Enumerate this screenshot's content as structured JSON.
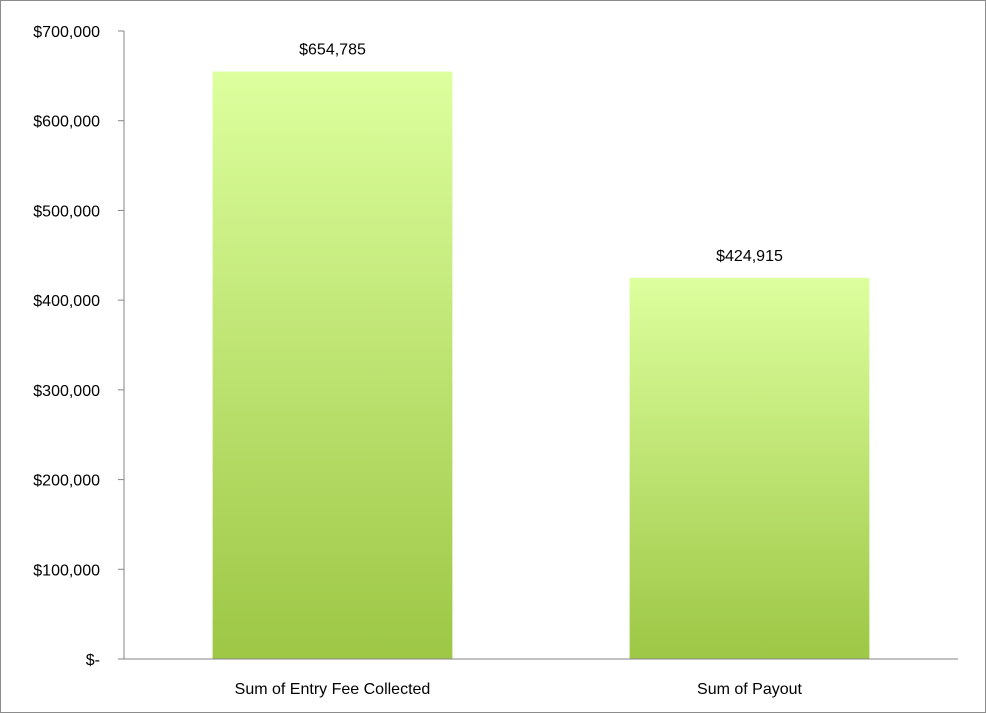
{
  "chart_data": {
    "type": "bar",
    "categories": [
      "Sum of Entry Fee Collected",
      "Sum of Payout"
    ],
    "values": [
      654785,
      424915
    ],
    "data_labels": [
      "$654,785",
      "$424,915"
    ],
    "title": "",
    "xlabel": "",
    "ylabel": "",
    "ylim": [
      0,
      700000
    ],
    "yticks": [
      {
        "value": 0,
        "label": "$-"
      },
      {
        "value": 100000,
        "label": "$100,000"
      },
      {
        "value": 200000,
        "label": "$200,000"
      },
      {
        "value": 300000,
        "label": "$300,000"
      },
      {
        "value": 400000,
        "label": "$400,000"
      },
      {
        "value": 500000,
        "label": "$500,000"
      },
      {
        "value": 600000,
        "label": "$600,000"
      },
      {
        "value": 700000,
        "label": "$700,000"
      }
    ],
    "grid": false,
    "legend": "none",
    "colors": {
      "bar_top": "#ddff9e",
      "bar_bottom": "#9dc745",
      "axis": "#868686"
    }
  }
}
